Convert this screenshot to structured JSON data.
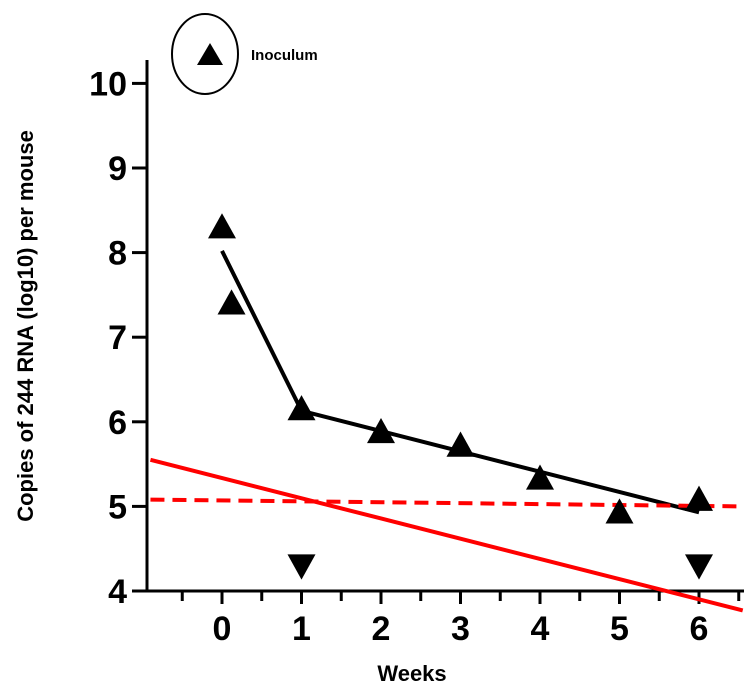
{
  "chart_data": {
    "type": "scatter",
    "xlabel": "Weeks",
    "ylabel": "Copies of 244 RNA (log10) per mouse",
    "xlim": [
      -0.9,
      6.55
    ],
    "ylim": [
      4,
      10.2
    ],
    "x_ticks": [
      0,
      1,
      2,
      3,
      4,
      5,
      6
    ],
    "y_ticks": [
      4,
      5,
      6,
      7,
      8,
      9,
      10
    ],
    "legend": {
      "label": "Inoculum",
      "marker": "triangle-up",
      "placement": "top-left, circled"
    },
    "series": [
      {
        "name": "Inoculum",
        "marker": "triangle-up",
        "color": "#000000",
        "points": [
          {
            "x": 0.0,
            "y": 8.3
          },
          {
            "x": 0.12,
            "y": 7.4
          },
          {
            "x": 1.0,
            "y": 6.15
          },
          {
            "x": 2.0,
            "y": 5.88
          },
          {
            "x": 3.0,
            "y": 5.72
          },
          {
            "x": 4.0,
            "y": 5.33
          },
          {
            "x": 5.0,
            "y": 4.93
          },
          {
            "x": 6.0,
            "y": 5.08
          }
        ]
      },
      {
        "marker": "triangle-down",
        "color": "#000000",
        "points": [
          {
            "x": 1.0,
            "y": 4.3
          },
          {
            "x": 6.0,
            "y": 4.3
          }
        ]
      }
    ],
    "lines": [
      {
        "style": "solid",
        "color": "#000000",
        "points": [
          [
            0,
            8.02
          ],
          [
            1,
            6.13
          ],
          [
            6,
            4.93
          ]
        ]
      },
      {
        "style": "solid",
        "color": "#ff0000",
        "points": [
          [
            -0.9,
            5.55
          ],
          [
            6.55,
            3.77
          ]
        ]
      },
      {
        "style": "dashed",
        "color": "#ff0000",
        "points": [
          [
            -0.9,
            5.08
          ],
          [
            6.55,
            5.0
          ]
        ]
      }
    ],
    "grid": false
  }
}
